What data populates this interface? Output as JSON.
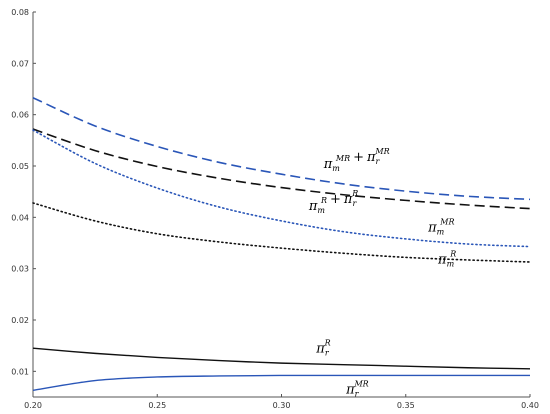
{
  "chart_data": {
    "type": "line",
    "title": "",
    "xlabel": "",
    "ylabel": "",
    "xlim": [
      0.2,
      0.4
    ],
    "ylim": [
      0.005,
      0.08
    ],
    "x_ticks": [
      "0.20",
      "0.25",
      "0.30",
      "0.35",
      "0.40"
    ],
    "y_ticks": [
      "0.01",
      "0.02",
      "0.03",
      "0.04",
      "0.05",
      "0.06",
      "0.07",
      "0.08"
    ],
    "x": [
      0.2,
      0.225,
      0.25,
      0.275,
      0.3,
      0.325,
      0.35,
      0.375,
      0.4
    ],
    "series": [
      {
        "key": "mr_sum",
        "style": "dashed",
        "color": "#2a56b8",
        "values": [
          0.0633,
          0.0578,
          0.0538,
          0.0507,
          0.0484,
          0.0465,
          0.0451,
          0.0441,
          0.0435
        ]
      },
      {
        "key": "r_sum",
        "style": "dashed",
        "color": "#111111",
        "values": [
          0.0572,
          0.053,
          0.0499,
          0.0476,
          0.0458,
          0.0444,
          0.0433,
          0.0424,
          0.0417
        ]
      },
      {
        "key": "pi_m_mr",
        "style": "dotted",
        "color": "#2a56b8",
        "values": [
          0.057,
          0.0505,
          0.0457,
          0.042,
          0.0393,
          0.0372,
          0.0358,
          0.0348,
          0.0343
        ]
      },
      {
        "key": "pi_m_r",
        "style": "dotted",
        "color": "#111111",
        "values": [
          0.0428,
          0.0393,
          0.0368,
          0.0352,
          0.034,
          0.033,
          0.0322,
          0.0317,
          0.0313
        ]
      },
      {
        "key": "pi_r_r",
        "style": "solid",
        "color": "#111111",
        "values": [
          0.0145,
          0.0135,
          0.0127,
          0.0121,
          0.0116,
          0.0113,
          0.011,
          0.0107,
          0.0105
        ]
      },
      {
        "key": "pi_r_mr",
        "style": "solid",
        "color": "#2a56b8",
        "values": [
          0.0063,
          0.0082,
          0.0089,
          0.0091,
          0.0092,
          0.0092,
          0.0092,
          0.0092,
          0.0092
        ]
      }
    ],
    "annotations": [
      {
        "key": "mr_sum",
        "terms": [
          {
            "base": "π",
            "sub": "m",
            "sup": "MR"
          },
          {
            "base": "π",
            "sub": "r",
            "sup": "MR"
          }
        ],
        "x": 0.317,
        "y": 0.0496
      },
      {
        "key": "r_sum",
        "terms": [
          {
            "base": "π",
            "sub": "m",
            "sup": "R"
          },
          {
            "base": "π",
            "sub": "r",
            "sup": "R"
          }
        ],
        "x": 0.311,
        "y": 0.0414
      },
      {
        "key": "pi_m_mr",
        "terms": [
          {
            "base": "π",
            "sub": "m",
            "sup": "MR"
          }
        ],
        "x": 0.359,
        "y": 0.0372
      },
      {
        "key": "pi_m_r",
        "terms": [
          {
            "base": "π",
            "sub": "m",
            "sup": "R"
          }
        ],
        "x": 0.363,
        "y": 0.031
      },
      {
        "key": "pi_r_r",
        "terms": [
          {
            "base": "π",
            "sub": "r",
            "sup": "R"
          }
        ],
        "x": 0.314,
        "y": 0.0137
      },
      {
        "key": "pi_r_mr",
        "terms": [
          {
            "base": "π",
            "sub": "r",
            "sup": "MR"
          }
        ],
        "x": 0.326,
        "y": 0.0057
      }
    ]
  }
}
